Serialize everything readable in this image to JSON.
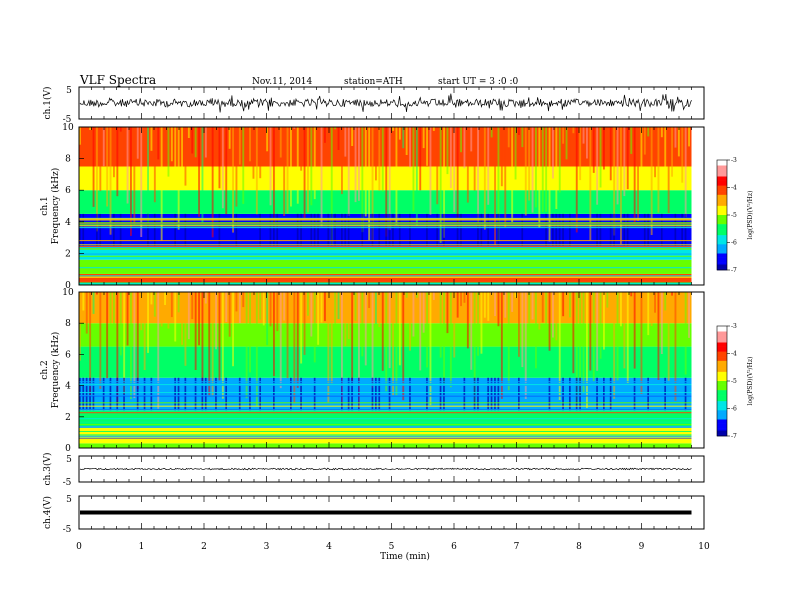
{
  "header": {
    "title": "VLF Spectra",
    "date": "Nov.11, 2014",
    "station": "station=ATH",
    "start": "start UT =  3 :0 :0"
  },
  "colors": {
    "trace": "#000000",
    "colormap": [
      "#000000",
      "#0000aa",
      "#0000ff",
      "#00aaff",
      "#00e6e6",
      "#00ff66",
      "#66ff00",
      "#ffff00",
      "#ffaa00",
      "#ff4400",
      "#ff0000",
      "#ff9999",
      "#ffffff"
    ]
  },
  "chart_data": [
    {
      "type": "line",
      "panel": "ch1-waveform",
      "ylabel": "ch.1(V)",
      "yticks": [
        "5",
        "-5"
      ],
      "ylim": [
        -5,
        5
      ],
      "xlim": [
        0,
        10
      ],
      "baseline": 0,
      "note": "noisy trace with frequent spikes"
    },
    {
      "type": "heatmap",
      "panel": "ch1-spectrogram",
      "ylabel_1": "ch.1",
      "ylabel_2": "Frequency  (kHz)",
      "yticks": [
        "0",
        "2",
        "4",
        "6",
        "8",
        "10"
      ],
      "ylim": [
        0,
        10
      ],
      "xlim": [
        0,
        10
      ],
      "data_end_min": 9.8,
      "colorbar": {
        "label": "log(PSD)(V²/Hz)",
        "ticks": [
          "-3",
          "-4",
          "-5",
          "-6",
          "-7"
        ],
        "range": [
          -7,
          -3
        ]
      },
      "bands": [
        {
          "f_low": 0.0,
          "f_high": 0.2,
          "log_psd": -5.5
        },
        {
          "f_low": 0.2,
          "f_high": 0.7,
          "log_psd": -4.2
        },
        {
          "f_low": 0.7,
          "f_high": 1.6,
          "log_psd": -5.1
        },
        {
          "f_low": 1.6,
          "f_high": 2.4,
          "log_psd": -5.8
        },
        {
          "f_low": 2.4,
          "f_high": 4.5,
          "log_psd": -6.6
        },
        {
          "f_low": 4.5,
          "f_high": 6.0,
          "log_psd": -5.6
        },
        {
          "f_low": 6.0,
          "f_high": 7.5,
          "log_psd": -4.8
        },
        {
          "f_low": 7.5,
          "f_high": 10.0,
          "log_psd": -4.1
        }
      ]
    },
    {
      "type": "heatmap",
      "panel": "ch2-spectrogram",
      "ylabel_1": "ch.2",
      "ylabel_2": "Frequency  (kHz)",
      "yticks": [
        "0",
        "2",
        "4",
        "6",
        "8",
        "10"
      ],
      "ylim": [
        0,
        10
      ],
      "xlim": [
        0,
        10
      ],
      "data_end_min": 9.8,
      "colorbar": {
        "label": "log(PSD)(V²/Hz)",
        "ticks": [
          "-3",
          "-4",
          "-5",
          "-6",
          "-7"
        ],
        "range": [
          -7,
          -3
        ]
      },
      "bands": [
        {
          "f_low": 0.0,
          "f_high": 0.3,
          "log_psd": -5.2
        },
        {
          "f_low": 0.3,
          "f_high": 1.4,
          "log_psd": -4.8
        },
        {
          "f_low": 1.4,
          "f_high": 2.4,
          "log_psd": -5.4
        },
        {
          "f_low": 2.4,
          "f_high": 4.5,
          "log_psd": -6.4
        },
        {
          "f_low": 4.5,
          "f_high": 6.5,
          "log_psd": -5.5
        },
        {
          "f_low": 6.5,
          "f_high": 8.0,
          "log_psd": -5.1
        },
        {
          "f_low": 8.0,
          "f_high": 10.0,
          "log_psd": -4.5
        }
      ]
    },
    {
      "type": "line",
      "panel": "ch3-waveform",
      "ylabel": "ch.3(V)",
      "yticks": [
        "5",
        "-5"
      ],
      "ylim": [
        -5,
        5
      ],
      "xlim": [
        0,
        10
      ],
      "baseline": 0,
      "note": "flat trace, small noise"
    },
    {
      "type": "line",
      "panel": "ch4-waveform",
      "ylabel": "ch.4(V)",
      "yticks": [
        "5",
        "-5"
      ],
      "ylim": [
        -5,
        5
      ],
      "xlim": [
        0,
        10
      ],
      "baseline": 0,
      "xlabel": "Time  (min)",
      "xticks": [
        "0",
        "1",
        "2",
        "3",
        "4",
        "5",
        "6",
        "7",
        "8",
        "9",
        "10"
      ],
      "note": "thick flat trace"
    }
  ]
}
